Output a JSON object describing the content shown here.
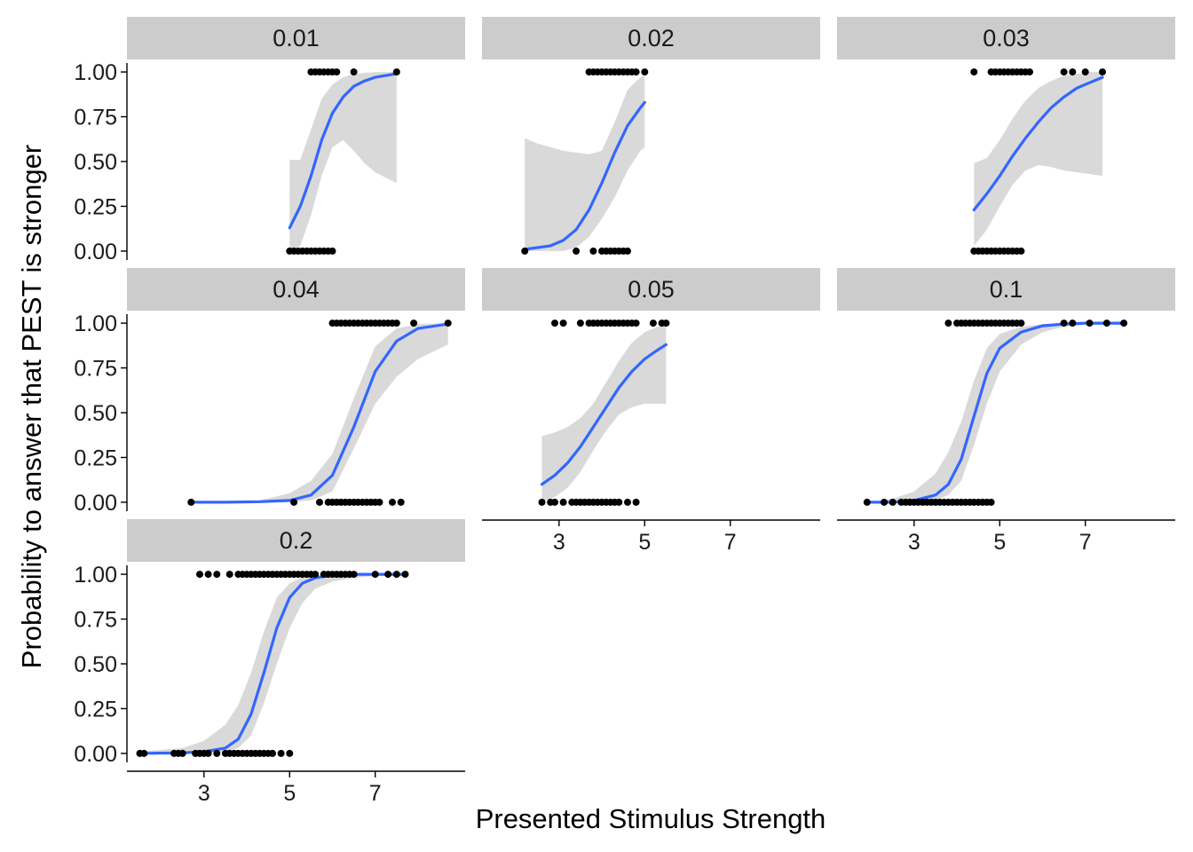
{
  "colors": {
    "line": "#3366FF",
    "ribbon": "#D9D9D9",
    "points": "#000000",
    "strip": "#CCCCCC",
    "axis": "#000000"
  },
  "chart_data": {
    "type": "scatter",
    "xlabel": "Presented Stimulus Strength",
    "ylabel": "Probability to answer that PEST is stronger",
    "xlim": [
      1.2,
      9.1
    ],
    "ylim": [
      -0.05,
      1.05
    ],
    "x_ticks": [
      3,
      5,
      7
    ],
    "y_ticks": [
      0,
      0.25,
      0.5,
      0.75,
      1
    ],
    "y_tick_labels": [
      "0.00",
      "0.25",
      "0.50",
      "0.75",
      "1.00"
    ],
    "grid": false,
    "legend": "none",
    "facet_labels": [
      "0.01",
      "0.02",
      "0.03",
      "0.04",
      "0.05",
      "0.1",
      "0.2"
    ],
    "panels": [
      {
        "label": "0.01",
        "points_y0": [
          5.0,
          5.1,
          5.2,
          5.3,
          5.4,
          5.5,
          5.6,
          5.7,
          5.8,
          5.9,
          6.0
        ],
        "points_y1": [
          5.5,
          5.6,
          5.7,
          5.8,
          5.9,
          6.0,
          6.1,
          6.5,
          7.5
        ],
        "fit": {
          "x": [
            5.0,
            5.25,
            5.5,
            5.75,
            6.0,
            6.25,
            6.5,
            6.75,
            7.0,
            7.25,
            7.5
          ],
          "y": [
            0.13,
            0.25,
            0.42,
            0.62,
            0.77,
            0.86,
            0.92,
            0.95,
            0.97,
            0.98,
            0.99
          ]
        },
        "ci_upper": [
          0.51,
          0.51,
          0.68,
          0.85,
          0.93,
          0.97,
          0.99,
          0.995,
          1.0,
          1.0,
          1.0
        ],
        "ci_lower": [
          0.0,
          0.03,
          0.2,
          0.42,
          0.58,
          0.62,
          0.56,
          0.49,
          0.44,
          0.41,
          0.38
        ]
      },
      {
        "label": "0.02",
        "points_y0": [
          2.2,
          3.4,
          3.8,
          4.0,
          4.1,
          4.2,
          4.3,
          4.4,
          4.5,
          4.6
        ],
        "points_y1": [
          3.7,
          3.8,
          3.9,
          4.0,
          4.1,
          4.2,
          4.3,
          4.4,
          4.5,
          4.6,
          4.7,
          4.8,
          5.0
        ],
        "fit": {
          "x": [
            2.2,
            2.5,
            2.8,
            3.1,
            3.4,
            3.7,
            4.0,
            4.3,
            4.6,
            4.9,
            5.0
          ],
          "y": [
            0.01,
            0.02,
            0.03,
            0.06,
            0.12,
            0.23,
            0.38,
            0.55,
            0.7,
            0.8,
            0.83
          ]
        },
        "ci_upper": [
          0.63,
          0.6,
          0.58,
          0.56,
          0.55,
          0.54,
          0.56,
          0.72,
          0.9,
          0.97,
          0.98
        ],
        "ci_lower": [
          0.0,
          0.0,
          0.0,
          0.0,
          0.02,
          0.08,
          0.18,
          0.3,
          0.45,
          0.56,
          0.58
        ]
      },
      {
        "label": "0.03",
        "points_y0": [
          4.4,
          4.5,
          4.6,
          4.7,
          4.8,
          4.9,
          5.0,
          5.1,
          5.2,
          5.3,
          5.4,
          5.5
        ],
        "points_y1": [
          4.4,
          4.8,
          4.9,
          5.0,
          5.1,
          5.2,
          5.3,
          5.4,
          5.5,
          5.6,
          5.7,
          6.5,
          6.7,
          7.0,
          7.4
        ],
        "fit": {
          "x": [
            4.4,
            4.7,
            5.0,
            5.3,
            5.6,
            5.9,
            6.2,
            6.5,
            6.8,
            7.1,
            7.4
          ],
          "y": [
            0.23,
            0.32,
            0.42,
            0.53,
            0.63,
            0.72,
            0.8,
            0.86,
            0.91,
            0.94,
            0.97
          ]
        },
        "ci_upper": [
          0.49,
          0.52,
          0.62,
          0.74,
          0.84,
          0.91,
          0.95,
          0.98,
          0.99,
          1.0,
          1.0
        ],
        "ci_lower": [
          0.03,
          0.12,
          0.25,
          0.37,
          0.45,
          0.48,
          0.47,
          0.45,
          0.44,
          0.43,
          0.42
        ]
      },
      {
        "label": "0.04",
        "points_y0": [
          2.7,
          5.1,
          5.7,
          5.9,
          6.0,
          6.1,
          6.2,
          6.3,
          6.4,
          6.5,
          6.6,
          6.7,
          6.8,
          6.9,
          7.0,
          7.1,
          7.4,
          7.6
        ],
        "points_y1": [
          6.0,
          6.1,
          6.2,
          6.3,
          6.4,
          6.5,
          6.6,
          6.7,
          6.8,
          6.9,
          7.0,
          7.1,
          7.2,
          7.3,
          7.4,
          7.5,
          7.9,
          8.7
        ],
        "fit": {
          "x": [
            2.7,
            3.5,
            4.3,
            5.0,
            5.5,
            6.0,
            6.5,
            7.0,
            7.5,
            8.0,
            8.7
          ],
          "y": [
            0.0,
            0.0,
            0.003,
            0.01,
            0.04,
            0.15,
            0.42,
            0.73,
            0.9,
            0.97,
            0.995
          ]
        },
        "ci_upper": [
          0.0,
          0.002,
          0.01,
          0.05,
          0.12,
          0.27,
          0.58,
          0.87,
          0.97,
          0.995,
          1.0
        ],
        "ci_lower": [
          0.0,
          0.0,
          0.0,
          0.0,
          0.01,
          0.06,
          0.3,
          0.55,
          0.7,
          0.8,
          0.88
        ]
      },
      {
        "label": "0.05",
        "points_y0": [
          2.6,
          2.8,
          2.9,
          3.1,
          3.3,
          3.4,
          3.5,
          3.6,
          3.7,
          3.8,
          3.9,
          4.0,
          4.1,
          4.2,
          4.3,
          4.4,
          4.6,
          4.8
        ],
        "points_y1": [
          2.9,
          3.1,
          3.5,
          3.7,
          3.8,
          3.9,
          4.0,
          4.1,
          4.2,
          4.3,
          4.4,
          4.5,
          4.6,
          4.7,
          4.8,
          5.2,
          5.4,
          5.5
        ],
        "fit": {
          "x": [
            2.6,
            2.9,
            3.2,
            3.5,
            3.8,
            4.1,
            4.4,
            4.7,
            5.0,
            5.3,
            5.5
          ],
          "y": [
            0.1,
            0.15,
            0.22,
            0.31,
            0.42,
            0.53,
            0.64,
            0.73,
            0.8,
            0.85,
            0.88
          ]
        },
        "ci_upper": [
          0.37,
          0.39,
          0.42,
          0.47,
          0.55,
          0.67,
          0.79,
          0.89,
          0.95,
          0.98,
          0.99
        ],
        "ci_lower": [
          0.0,
          0.03,
          0.08,
          0.17,
          0.29,
          0.4,
          0.49,
          0.53,
          0.55,
          0.55,
          0.55
        ]
      },
      {
        "label": "0.1",
        "points_y0": [
          1.9,
          2.3,
          2.5,
          2.7,
          2.8,
          2.9,
          3.0,
          3.1,
          3.2,
          3.3,
          3.4,
          3.5,
          3.6,
          3.7,
          3.8,
          3.9,
          4.0,
          4.1,
          4.2,
          4.3,
          4.4,
          4.5,
          4.6,
          4.7,
          4.8
        ],
        "points_y1": [
          3.8,
          4.0,
          4.1,
          4.2,
          4.3,
          4.4,
          4.5,
          4.6,
          4.7,
          4.8,
          4.9,
          5.0,
          5.1,
          5.2,
          5.3,
          5.4,
          5.5,
          6.5,
          6.7,
          7.1,
          7.5,
          7.9
        ],
        "fit": {
          "x": [
            1.9,
            2.5,
            3.0,
            3.5,
            3.8,
            4.1,
            4.4,
            4.7,
            5.0,
            5.5,
            6.0,
            6.5,
            7.0,
            7.5,
            7.9
          ],
          "y": [
            0.0,
            0.0,
            0.01,
            0.04,
            0.1,
            0.24,
            0.48,
            0.72,
            0.86,
            0.95,
            0.985,
            0.995,
            1.0,
            1.0,
            1.0
          ]
        },
        "ci_upper": [
          0.0,
          0.02,
          0.06,
          0.16,
          0.28,
          0.45,
          0.68,
          0.86,
          0.94,
          0.98,
          0.995,
          1.0,
          1.0,
          1.0,
          1.0
        ],
        "ci_lower": [
          0.0,
          0.0,
          0.0,
          0.01,
          0.04,
          0.12,
          0.32,
          0.55,
          0.73,
          0.88,
          0.95,
          0.98,
          0.99,
          0.99,
          0.99
        ]
      },
      {
        "label": "0.2",
        "points_y0": [
          1.5,
          1.6,
          2.3,
          2.4,
          2.5,
          2.8,
          2.9,
          3.0,
          3.1,
          3.3,
          3.5,
          3.6,
          3.7,
          3.8,
          3.9,
          4.0,
          4.1,
          4.2,
          4.3,
          4.4,
          4.5,
          4.6,
          4.8,
          5.0
        ],
        "points_y1": [
          2.9,
          3.1,
          3.3,
          3.6,
          3.8,
          3.9,
          4.0,
          4.1,
          4.2,
          4.3,
          4.4,
          4.5,
          4.6,
          4.7,
          4.8,
          4.9,
          5.0,
          5.1,
          5.2,
          5.3,
          5.4,
          5.5,
          5.6,
          5.8,
          5.9,
          6.0,
          6.1,
          6.2,
          6.3,
          6.4,
          6.5,
          7.0,
          7.3,
          7.5,
          7.7
        ],
        "fit": {
          "x": [
            1.5,
            2.5,
            3.0,
            3.5,
            3.8,
            4.1,
            4.4,
            4.7,
            5.0,
            5.3,
            5.6,
            6.0,
            6.5,
            7.0,
            7.7
          ],
          "y": [
            0.0,
            0.003,
            0.01,
            0.03,
            0.08,
            0.22,
            0.45,
            0.7,
            0.87,
            0.95,
            0.98,
            0.995,
            1.0,
            1.0,
            1.0
          ]
        },
        "ci_upper": [
          0.01,
          0.03,
          0.07,
          0.16,
          0.27,
          0.45,
          0.68,
          0.87,
          0.95,
          0.985,
          0.995,
          1.0,
          1.0,
          1.0,
          1.0
        ],
        "ci_lower": [
          0.0,
          0.0,
          0.0,
          0.01,
          0.03,
          0.1,
          0.28,
          0.5,
          0.7,
          0.84,
          0.92,
          0.96,
          0.98,
          0.99,
          0.99
        ]
      }
    ]
  }
}
